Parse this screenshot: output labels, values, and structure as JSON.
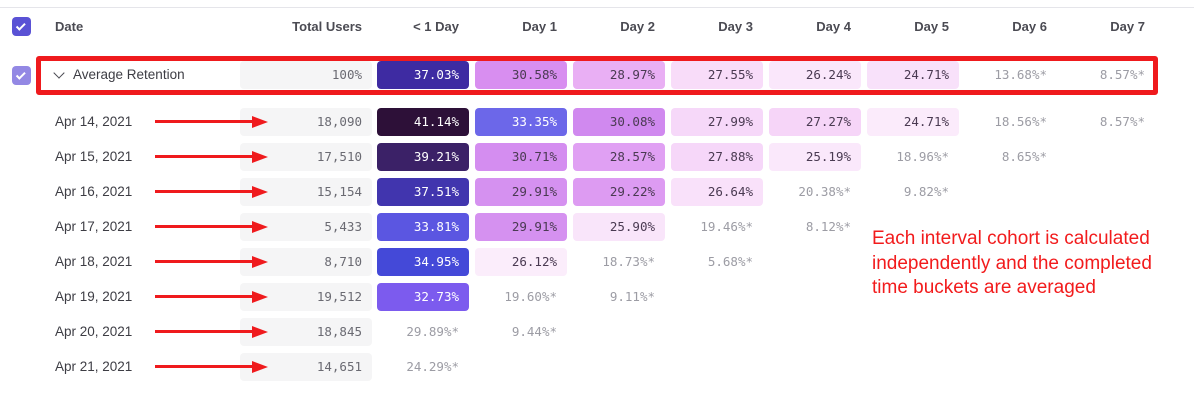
{
  "colors": {
    "accent_checkbox_header": "#5a52d5",
    "accent_checkbox_row": "#9388e4",
    "annotation_red": "#ef1a1d",
    "total_cell_bg": "#f5f5f6",
    "muted_text": "#9c9ca4"
  },
  "table": {
    "columns": [
      "Date",
      "Total Users",
      "< 1 Day",
      "Day 1",
      "Day 2",
      "Day 3",
      "Day 4",
      "Day 5",
      "Day 6",
      "Day 7"
    ],
    "rows": [
      {
        "label": "Average Retention",
        "is_average": true,
        "checked": true,
        "total": "100%",
        "cells": [
          {
            "v": "37.03%",
            "bg": "#3e2ba2",
            "fg": "#ffffff"
          },
          {
            "v": "30.58%",
            "bg": "#d88ef0"
          },
          {
            "v": "28.97%",
            "bg": "#e9aff4"
          },
          {
            "v": "27.55%",
            "bg": "#f8dcf9"
          },
          {
            "v": "26.24%",
            "bg": "#fae7fb"
          },
          {
            "v": "24.71%",
            "bg": "#f8e1fa"
          },
          {
            "v": "13.68%*"
          },
          {
            "v": "8.57%*"
          }
        ]
      },
      {
        "label": "Apr 14, 2021",
        "arrow": true,
        "total": "18,090",
        "cells": [
          {
            "v": "41.14%",
            "bg": "#2d1038",
            "fg": "#ffffff"
          },
          {
            "v": "33.35%",
            "bg": "#6c67e9",
            "fg": "#ffffff"
          },
          {
            "v": "30.08%",
            "bg": "#d089ef"
          },
          {
            "v": "27.99%",
            "bg": "#f6d8f9"
          },
          {
            "v": "27.27%",
            "bg": "#f6d5f8"
          },
          {
            "v": "24.71%",
            "bg": "#fbebfb"
          },
          {
            "v": "18.56%*"
          },
          {
            "v": "8.57%*"
          }
        ]
      },
      {
        "label": "Apr 15, 2021",
        "arrow": true,
        "total": "17,510",
        "cells": [
          {
            "v": "39.21%",
            "bg": "#3b2167",
            "fg": "#ffffff"
          },
          {
            "v": "30.71%",
            "bg": "#d48df0"
          },
          {
            "v": "28.57%",
            "bg": "#e0a0f3"
          },
          {
            "v": "27.88%",
            "bg": "#f6d7f9"
          },
          {
            "v": "25.19%",
            "bg": "#fae8fb"
          },
          {
            "v": "18.96%*"
          },
          {
            "v": "8.65%*"
          }
        ]
      },
      {
        "label": "Apr 16, 2021",
        "arrow": true,
        "total": "15,154",
        "cells": [
          {
            "v": "37.51%",
            "bg": "#4135ae",
            "fg": "#ffffff"
          },
          {
            "v": "29.91%",
            "bg": "#d591f0"
          },
          {
            "v": "29.22%",
            "bg": "#dd9bf2"
          },
          {
            "v": "26.64%",
            "bg": "#f9e1fa"
          },
          {
            "v": "20.38%*"
          },
          {
            "v": "9.82%*"
          }
        ]
      },
      {
        "label": "Apr 17, 2021",
        "arrow": true,
        "total": "5,433",
        "cells": [
          {
            "v": "33.81%",
            "bg": "#5b56e1",
            "fg": "#ffffff"
          },
          {
            "v": "29.91%",
            "bg": "#d591f0"
          },
          {
            "v": "25.90%",
            "bg": "#f9e5fa"
          },
          {
            "v": "19.46%*"
          },
          {
            "v": "8.12%*"
          }
        ]
      },
      {
        "label": "Apr 18, 2021",
        "arrow": true,
        "total": "8,710",
        "cells": [
          {
            "v": "34.95%",
            "bg": "#4449d8",
            "fg": "#ffffff"
          },
          {
            "v": "26.12%",
            "bg": "#fbedfb"
          },
          {
            "v": "18.73%*"
          },
          {
            "v": "5.68%*"
          }
        ]
      },
      {
        "label": "Apr 19, 2021",
        "arrow": true,
        "total": "19,512",
        "cells": [
          {
            "v": "32.73%",
            "bg": "#7c5bee",
            "fg": "#ffffff"
          },
          {
            "v": "19.60%*"
          },
          {
            "v": "9.11%*"
          }
        ]
      },
      {
        "label": "Apr 20, 2021",
        "arrow": true,
        "total": "18,845",
        "cells": [
          {
            "v": "29.89%*"
          },
          {
            "v": "9.44%*"
          }
        ]
      },
      {
        "label": "Apr 21, 2021",
        "arrow": true,
        "total": "14,651",
        "cells": [
          {
            "v": "24.29%*"
          }
        ]
      }
    ]
  },
  "annotations": {
    "note": "Each interval cohort is calculated independently and the completed time buckets are averaged"
  }
}
